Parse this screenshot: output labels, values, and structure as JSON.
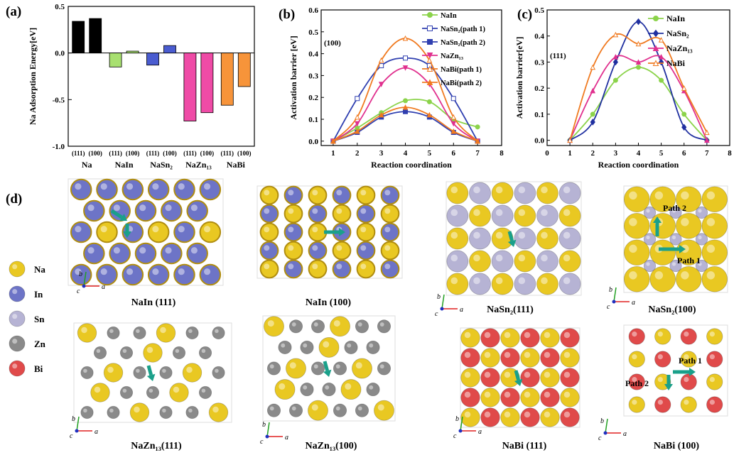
{
  "panel_labels": {
    "a": "(a)",
    "b": "(b)",
    "c": "(c)",
    "d": "(d)"
  },
  "colors": {
    "Na": "#e9c822",
    "In": "#6d74c7",
    "Sn": "#b6b3d4",
    "Zn": "#8a8a8a",
    "Bi": "#e04a4a",
    "arrow": "#1aa08a",
    "axis_a": "#e02020",
    "axis_b": "#22a022",
    "axis_c": "#2030c0"
  },
  "chart_data": [
    {
      "id": "a",
      "type": "bar",
      "title": "",
      "ylabel": "Na Adsorption Energy[eV]",
      "xlabel": "",
      "ylim": [
        -1.0,
        0.5
      ],
      "yticks": [
        -1.0,
        -0.5,
        0.0,
        0.5
      ],
      "ytick_labels": [
        "-1.0",
        "-0.5",
        "0.0",
        "0.5"
      ],
      "groups": [
        {
          "name": "Na",
          "color": "#000000",
          "bars": [
            {
              "facet": "(111)",
              "value": 0.34
            },
            {
              "facet": "(100)",
              "value": 0.37
            }
          ]
        },
        {
          "name": "NaIn",
          "color": "#a8e070",
          "bars": [
            {
              "facet": "(111)",
              "value": -0.15
            },
            {
              "facet": "(100)",
              "value": 0.02
            }
          ]
        },
        {
          "name": "NaSn₂",
          "color": "#4a5cd0",
          "bars": [
            {
              "facet": "(111)",
              "value": -0.13
            },
            {
              "facet": "(100)",
              "value": 0.08
            }
          ]
        },
        {
          "name": "NaZn₁₃",
          "color": "#ef4ba6",
          "bars": [
            {
              "facet": "(111)",
              "value": -0.73
            },
            {
              "facet": "(100)",
              "value": -0.64
            }
          ]
        },
        {
          "name": "NaBi",
          "color": "#f7943a",
          "bars": [
            {
              "facet": "(111)",
              "value": -0.56
            },
            {
              "facet": "(100)",
              "value": -0.36
            }
          ]
        }
      ]
    },
    {
      "id": "b",
      "type": "line",
      "annotation": "(100)",
      "xlabel": "Reaction coordination",
      "ylabel": "Activation barrier [eV]",
      "xlim": [
        0.5,
        8
      ],
      "ylim": [
        -0.02,
        0.6
      ],
      "xticks": [
        1,
        2,
        3,
        4,
        5,
        6,
        7,
        8
      ],
      "yticks": [
        0.0,
        0.1,
        0.2,
        0.3,
        0.4,
        0.5,
        0.6
      ],
      "ytick_labels": [
        "0.0",
        "0.1",
        "0.2",
        "0.3",
        "0.4",
        "0.5",
        "0.6"
      ],
      "series": [
        {
          "name": "NaIn",
          "color": "#8bd34a",
          "marker": "circle",
          "filled": true,
          "x": [
            1,
            2,
            3,
            4,
            5,
            6,
            7
          ],
          "y": [
            0.0,
            0.06,
            0.13,
            0.185,
            0.18,
            0.1,
            0.065
          ]
        },
        {
          "name": "NaSn₂(path 1)",
          "color": "#2f3fb0",
          "marker": "square",
          "filled": false,
          "x": [
            1,
            2,
            3,
            4,
            5,
            6,
            7
          ],
          "y": [
            0.0,
            0.195,
            0.345,
            0.38,
            0.345,
            0.195,
            0.0
          ]
        },
        {
          "name": "NaSn₂(path 2)",
          "color": "#2f3fb0",
          "marker": "square",
          "filled": true,
          "x": [
            1,
            2,
            3,
            4,
            5,
            6,
            7
          ],
          "y": [
            0.0,
            0.04,
            0.11,
            0.135,
            0.11,
            0.04,
            0.0
          ]
        },
        {
          "name": "NaZn₁₃",
          "color": "#e0308e",
          "marker": "triangle-down",
          "filled": true,
          "x": [
            1,
            2,
            3,
            4,
            5,
            6,
            7
          ],
          "y": [
            0.0,
            0.08,
            0.26,
            0.335,
            0.26,
            0.08,
            0.0
          ]
        },
        {
          "name": "NaBi(path 1)",
          "color": "#f07a20",
          "marker": "triangle",
          "filled": false,
          "x": [
            1,
            2,
            3,
            4,
            5,
            6,
            7
          ],
          "y": [
            0.0,
            0.11,
            0.37,
            0.47,
            0.37,
            0.11,
            0.0
          ]
        },
        {
          "name": "NaBi(path  2)",
          "color": "#f07a20",
          "marker": "triangle",
          "filled": true,
          "x": [
            1,
            2,
            3,
            4,
            5,
            6,
            7
          ],
          "y": [
            0.0,
            0.045,
            0.12,
            0.155,
            0.12,
            0.045,
            0.0
          ]
        }
      ]
    },
    {
      "id": "c",
      "type": "line",
      "annotation": "(111)",
      "xlabel": "Reaction coordination",
      "ylabel": "Activation barrier[eV]",
      "xlim": [
        0,
        8
      ],
      "ylim": [
        -0.02,
        0.5
      ],
      "xticks": [
        0,
        1,
        2,
        3,
        4,
        5,
        6,
        7,
        8
      ],
      "yticks": [
        0.0,
        0.1,
        0.2,
        0.3,
        0.4,
        0.5
      ],
      "ytick_labels": [
        "0.0",
        "0.1",
        "0.2",
        "0.3",
        "0.4",
        "0.5"
      ],
      "series": [
        {
          "name": "NaIn",
          "color": "#8bd34a",
          "marker": "circle",
          "filled": true,
          "x": [
            1,
            2,
            3,
            4,
            5,
            6,
            7
          ],
          "y": [
            0.0,
            0.1,
            0.23,
            0.28,
            0.23,
            0.1,
            0.0
          ]
        },
        {
          "name": "NaSn₂",
          "color": "#2030a0",
          "marker": "diamond",
          "filled": true,
          "x": [
            1,
            2,
            3,
            4,
            5,
            6,
            7
          ],
          "y": [
            0.0,
            0.07,
            0.3,
            0.455,
            0.3,
            0.05,
            0.0
          ]
        },
        {
          "name": "NaZn₁₃",
          "color": "#e0308e",
          "marker": "triangle",
          "filled": true,
          "x": [
            1,
            2,
            3,
            4,
            5,
            6,
            7
          ],
          "y": [
            0.0,
            0.19,
            0.32,
            0.3,
            0.32,
            0.19,
            0.0
          ]
        },
        {
          "name": "NaBi",
          "color": "#f07a20",
          "marker": "triangle",
          "filled": false,
          "x": [
            1,
            2,
            3,
            4,
            5,
            6,
            7
          ],
          "y": [
            0.0,
            0.28,
            0.405,
            0.37,
            0.385,
            0.2,
            0.03
          ]
        }
      ]
    }
  ],
  "legend_d": [
    {
      "label": "Na",
      "element": "Na"
    },
    {
      "label": "In",
      "element": "In"
    },
    {
      "label": "Sn",
      "element": "Sn"
    },
    {
      "label": "Zn",
      "element": "Zn"
    },
    {
      "label": "Bi",
      "element": "Bi"
    }
  ],
  "structures": [
    {
      "id": "naIn111",
      "caption": "NaIn (111)",
      "pattern": "hex",
      "large": "In",
      "second": "Na"
    },
    {
      "id": "naIn100",
      "caption": "NaIn (100)",
      "pattern": "checker",
      "large": "Na",
      "second": "In"
    },
    {
      "id": "naSn2_111",
      "caption": "NaSn₂(111)",
      "pattern": "mixed",
      "large": "Na",
      "second": "Sn"
    },
    {
      "id": "naSn2_100",
      "caption": "NaSn₂(100)",
      "pattern": "square",
      "large": "Na",
      "second": "Sn",
      "path_labels": [
        "Path 2",
        "Path 1"
      ]
    },
    {
      "id": "naZn13_111",
      "caption": "NaZn₁₃(111)",
      "pattern": "zn",
      "large": "Na",
      "second": "Zn"
    },
    {
      "id": "naZn13_100",
      "caption": "NaZn₁₃(100)",
      "pattern": "zn",
      "large": "Na",
      "second": "Zn"
    },
    {
      "id": "naBi111",
      "caption": "NaBi (111)",
      "pattern": "checker",
      "large": "Na",
      "second": "Bi"
    },
    {
      "id": "naBi100",
      "caption": "NaBi (100)",
      "pattern": "square",
      "large": "Bi",
      "second": "Na",
      "path_labels": [
        "Path 1",
        "Path 2"
      ]
    }
  ],
  "axis_labels": {
    "a": "a",
    "b": "b",
    "c": "c"
  }
}
